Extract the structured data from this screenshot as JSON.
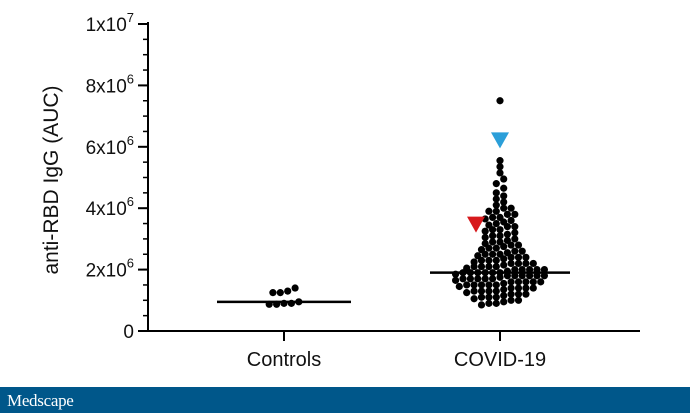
{
  "chart_data": {
    "type": "scatter",
    "subtype": "dot-plot-with-median",
    "ylabel": "anti-RBD IgG (AUC)",
    "xlabel": "",
    "ylim": [
      0,
      10000000
    ],
    "y_tick_labels": [
      {
        "value": 0,
        "base": "0",
        "exp": ""
      },
      {
        "value": 2000000,
        "base": "2x10",
        "exp": "6"
      },
      {
        "value": 4000000,
        "base": "4x10",
        "exp": "6"
      },
      {
        "value": 6000000,
        "base": "6x10",
        "exp": "6"
      },
      {
        "value": 8000000,
        "base": "8x10",
        "exp": "6"
      },
      {
        "value": 10000000,
        "base": "1x10",
        "exp": "7"
      }
    ],
    "categories": [
      "Controls",
      "COVID-19"
    ],
    "series": [
      {
        "category": "Controls",
        "median": 950000,
        "values": [
          1400000,
          1250000,
          1300000,
          1250000,
          950000,
          900000,
          870000,
          900000,
          870000
        ]
      },
      {
        "category": "COVID-19",
        "median": 1900000,
        "values": [
          7500000,
          5550000,
          5350000,
          5150000,
          4950000,
          4800000,
          4650000,
          4500000,
          4400000,
          4300000,
          4200000,
          4100000,
          4000000,
          4000000,
          3900000,
          3900000,
          3800000,
          3800000,
          3700000,
          3700000,
          3650000,
          3600000,
          3550000,
          3500000,
          3450000,
          3400000,
          3400000,
          3300000,
          3300000,
          3250000,
          3200000,
          3150000,
          3100000,
          3100000,
          3050000,
          3000000,
          2950000,
          2900000,
          2900000,
          2850000,
          2800000,
          2800000,
          2750000,
          2700000,
          2700000,
          2650000,
          2600000,
          2600000,
          2550000,
          2500000,
          2500000,
          2500000,
          2450000,
          2400000,
          2400000,
          2400000,
          2350000,
          2300000,
          2300000,
          2300000,
          2250000,
          2200000,
          2200000,
          2200000,
          2200000,
          2150000,
          2100000,
          2100000,
          2100000,
          2100000,
          2050000,
          2000000,
          2000000,
          2000000,
          2000000,
          2000000,
          1950000,
          1900000,
          1900000,
          1900000,
          1900000,
          1900000,
          1900000,
          1850000,
          1800000,
          1800000,
          1800000,
          1800000,
          1800000,
          1800000,
          1750000,
          1700000,
          1700000,
          1700000,
          1700000,
          1700000,
          1650000,
          1600000,
          1600000,
          1600000,
          1600000,
          1600000,
          1550000,
          1500000,
          1500000,
          1500000,
          1500000,
          1500000,
          1450000,
          1400000,
          1400000,
          1400000,
          1400000,
          1350000,
          1300000,
          1300000,
          1300000,
          1300000,
          1250000,
          1200000,
          1200000,
          1200000,
          1150000,
          1100000,
          1100000,
          1100000,
          1050000,
          1000000,
          1000000,
          950000,
          900000,
          900000,
          850000
        ]
      }
    ],
    "markers": [
      {
        "name": "red-triangle",
        "category": "COVID-19",
        "value": 3400000,
        "color": "#d7191c"
      },
      {
        "name": "blue-triangle",
        "category": "COVID-19",
        "value": 5950000,
        "color": "#2b9fd9"
      }
    ],
    "point_color": "#000000"
  },
  "footer": {
    "logo_text": "Medscape",
    "bar_color": "#00578a"
  }
}
